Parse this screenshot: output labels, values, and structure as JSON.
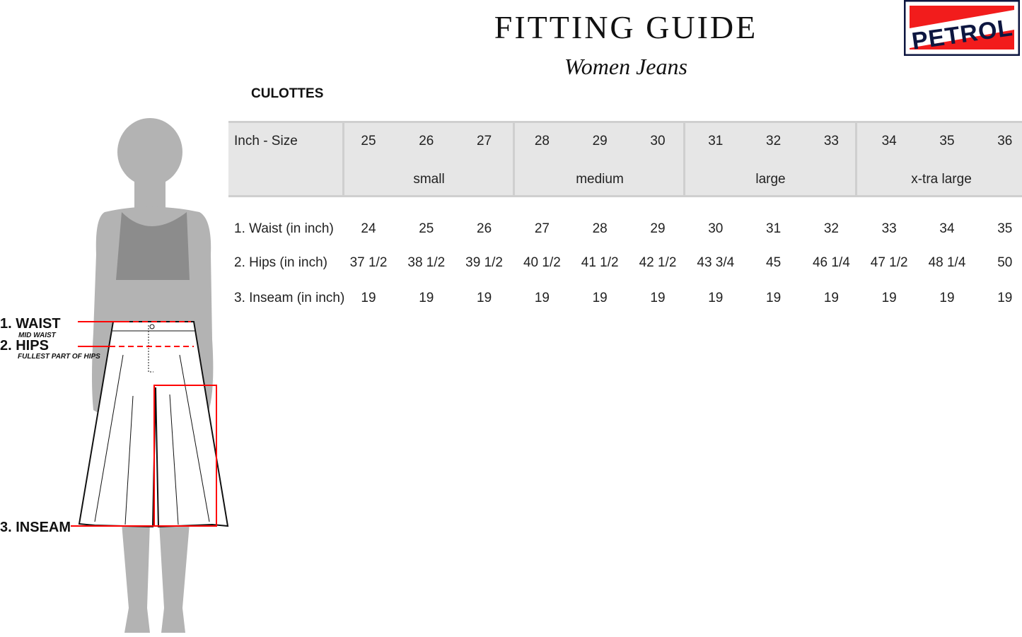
{
  "header": {
    "title": "FITTING GUIDE",
    "subtitle": "Women Jeans",
    "logo_text": "PETROL"
  },
  "category": "CULOTTES",
  "table": {
    "size_header": "Inch - Size",
    "sizes": [
      "25",
      "26",
      "27",
      "28",
      "29",
      "30",
      "31",
      "32",
      "33",
      "34",
      "35",
      "36"
    ],
    "groups": [
      "small",
      "medium",
      "large",
      "x-tra large"
    ],
    "rows": [
      {
        "label": "1. Waist (in inch)",
        "values": [
          "24",
          "25",
          "26",
          "27",
          "28",
          "29",
          "30",
          "31",
          "32",
          "33",
          "34",
          "35"
        ]
      },
      {
        "label": "2. Hips (in inch)",
        "values": [
          "37 1/2",
          "38 1/2",
          "39 1/2",
          "40 1/2",
          "41 1/2",
          "42 1/2",
          "43 3/4",
          "45",
          "46 1/4",
          "47 1/2",
          "48 1/4",
          "50"
        ]
      },
      {
        "label": "3. Inseam (in inch)",
        "values": [
          "19",
          "19",
          "19",
          "19",
          "19",
          "19",
          "19",
          "19",
          "19",
          "19",
          "19",
          "19"
        ]
      }
    ]
  },
  "figure": {
    "waist": "1. WAIST",
    "waist_note": "MID WAIST",
    "hips": "2. HIPS",
    "hips_note": "FULLEST PART OF HIPS",
    "inseam": "3. INSEAM"
  },
  "colors": {
    "accent": "#ff0000",
    "logo_navy": "#0d1640",
    "band": "#e6e6e6",
    "silhouette": "#b3b3b3"
  }
}
